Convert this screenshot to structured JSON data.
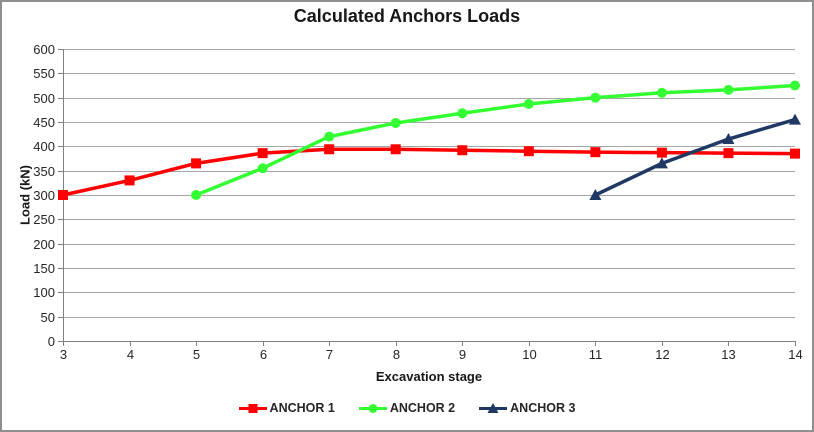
{
  "chart_data": {
    "type": "line",
    "title": "Calculated Anchors Loads",
    "xlabel": "Excavation stage",
    "ylabel": "Load (kN)",
    "xlim": [
      3,
      14
    ],
    "ylim": [
      0,
      600
    ],
    "x_ticks": [
      3,
      4,
      5,
      6,
      7,
      8,
      9,
      10,
      11,
      12,
      13,
      14
    ],
    "y_ticks": [
      0,
      50,
      100,
      150,
      200,
      250,
      300,
      350,
      400,
      450,
      500,
      550,
      600
    ],
    "grid": "horizontal gridlines at every 50 kN",
    "legend_position": "bottom center",
    "series": [
      {
        "name": "ANCHOR 1",
        "marker": "square",
        "color": "#FF0000",
        "x": [
          3,
          4,
          5,
          6,
          7,
          8,
          9,
          10,
          11,
          12,
          13,
          14
        ],
        "values": [
          300,
          330,
          365,
          386,
          394,
          394,
          392,
          390,
          388,
          387,
          386,
          385
        ]
      },
      {
        "name": "ANCHOR 2",
        "marker": "circle",
        "color": "#33FF33",
        "x": [
          5,
          6,
          7,
          8,
          9,
          10,
          11,
          12,
          13,
          14
        ],
        "values": [
          300,
          355,
          420,
          448,
          468,
          487,
          500,
          510,
          516,
          525
        ]
      },
      {
        "name": "ANCHOR 3",
        "marker": "triangle",
        "color": "#1F3864",
        "x": [
          11,
          12,
          13,
          14
        ],
        "values": [
          300,
          365,
          415,
          455
        ]
      }
    ],
    "colors": {
      "gridline": "#A6A6A6",
      "axis": "#808080",
      "text": "#262626",
      "frame_border": "#8F8F8F",
      "background": "#FFFFFF"
    }
  }
}
